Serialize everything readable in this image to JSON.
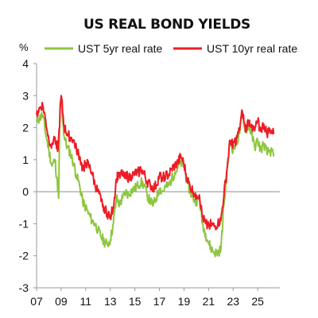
{
  "chart_data": {
    "type": "line",
    "title": "US REAL BOND YIELDS",
    "ylabel": "%",
    "xlabel": "",
    "ylim": [
      -3,
      4
    ],
    "xlim": [
      2007,
      2026.8
    ],
    "y_ticks": [
      4,
      3,
      2,
      1,
      0,
      -1,
      -2,
      -3
    ],
    "x_ticks": [
      "07",
      "09",
      "11",
      "13",
      "15",
      "17",
      "19",
      "21",
      "23",
      "25"
    ],
    "x_tick_values": [
      2007,
      2009,
      2011,
      2013,
      2015,
      2017,
      2019,
      2021,
      2023,
      2025
    ],
    "legend_position": "top",
    "zero_line": true,
    "series": [
      {
        "name": "UST 5yr real rate",
        "color": "#8dc63f",
        "x": [
          2007.0,
          2007.25,
          2007.5,
          2007.75,
          2008.0,
          2008.25,
          2008.5,
          2008.7,
          2008.8,
          2008.9,
          2009.0,
          2009.25,
          2009.5,
          2009.75,
          2010.0,
          2010.25,
          2010.5,
          2010.75,
          2011.0,
          2011.25,
          2011.5,
          2011.75,
          2012.0,
          2012.25,
          2012.5,
          2012.75,
          2013.0,
          2013.25,
          2013.5,
          2013.75,
          2014.0,
          2014.25,
          2014.5,
          2014.75,
          2015.0,
          2015.25,
          2015.5,
          2015.75,
          2016.0,
          2016.25,
          2016.5,
          2016.75,
          2017.0,
          2017.25,
          2017.5,
          2017.75,
          2018.0,
          2018.25,
          2018.5,
          2018.75,
          2019.0,
          2019.25,
          2019.5,
          2019.75,
          2020.0,
          2020.25,
          2020.5,
          2020.75,
          2021.0,
          2021.25,
          2021.5,
          2021.75,
          2022.0,
          2022.25,
          2022.5,
          2022.75,
          2023.0,
          2023.25,
          2023.5,
          2023.75,
          2024.0,
          2024.25,
          2024.5,
          2024.75,
          2025.0,
          2025.25,
          2025.5,
          2025.75,
          2026.0,
          2026.3
        ],
        "values": [
          2.2,
          2.3,
          2.4,
          1.8,
          1.3,
          0.8,
          1.0,
          0.2,
          -0.2,
          2.6,
          2.9,
          1.7,
          1.4,
          1.2,
          0.9,
          0.5,
          0.2,
          -0.3,
          -0.5,
          -0.7,
          -0.9,
          -1.0,
          -1.2,
          -1.4,
          -1.55,
          -1.65,
          -1.5,
          -1.0,
          -0.2,
          -0.4,
          -0.2,
          0.0,
          -0.1,
          0.05,
          0.1,
          0.2,
          0.3,
          0.2,
          -0.1,
          -0.3,
          -0.4,
          -0.2,
          0.1,
          0.0,
          0.15,
          0.2,
          0.4,
          0.6,
          0.75,
          0.9,
          0.8,
          0.3,
          0.0,
          -0.2,
          -0.3,
          -0.2,
          -1.0,
          -1.3,
          -1.6,
          -1.8,
          -1.9,
          -1.9,
          -1.8,
          -0.4,
          0.6,
          1.6,
          1.3,
          1.5,
          1.8,
          2.45,
          1.9,
          2.1,
          1.8,
          1.4,
          1.6,
          1.3,
          1.5,
          1.2,
          1.3,
          1.1
        ]
      },
      {
        "name": "UST 10yr real rate",
        "color": "#ee1c25",
        "x": [
          2007.0,
          2007.25,
          2007.5,
          2007.75,
          2008.0,
          2008.25,
          2008.5,
          2008.75,
          2009.0,
          2009.25,
          2009.5,
          2009.75,
          2010.0,
          2010.25,
          2010.5,
          2010.75,
          2011.0,
          2011.25,
          2011.5,
          2011.75,
          2012.0,
          2012.25,
          2012.5,
          2012.75,
          2013.0,
          2013.25,
          2013.5,
          2013.75,
          2014.0,
          2014.25,
          2014.5,
          2014.75,
          2015.0,
          2015.25,
          2015.5,
          2015.75,
          2016.0,
          2016.25,
          2016.5,
          2016.75,
          2017.0,
          2017.25,
          2017.5,
          2017.75,
          2018.0,
          2018.25,
          2018.5,
          2018.75,
          2019.0,
          2019.25,
          2019.5,
          2019.75,
          2020.0,
          2020.25,
          2020.5,
          2020.75,
          2021.0,
          2021.25,
          2021.5,
          2021.75,
          2022.0,
          2022.25,
          2022.5,
          2022.75,
          2023.0,
          2023.25,
          2023.5,
          2023.75,
          2024.0,
          2024.25,
          2024.5,
          2024.75,
          2025.0,
          2025.25,
          2025.5,
          2025.75,
          2026.0,
          2026.3
        ],
        "values": [
          2.4,
          2.6,
          2.7,
          2.2,
          1.6,
          1.5,
          1.7,
          1.3,
          3.0,
          2.0,
          1.8,
          1.7,
          1.6,
          1.3,
          1.1,
          0.7,
          0.9,
          0.8,
          0.6,
          0.2,
          0.0,
          -0.3,
          -0.5,
          -0.7,
          -0.75,
          -0.5,
          0.4,
          0.6,
          0.5,
          0.6,
          0.4,
          0.5,
          0.55,
          0.6,
          0.7,
          0.55,
          0.3,
          0.2,
          0.1,
          0.2,
          0.5,
          0.45,
          0.5,
          0.5,
          0.7,
          0.8,
          0.9,
          1.1,
          0.85,
          0.4,
          0.15,
          0.0,
          -0.1,
          -0.1,
          -0.8,
          -1.0,
          -1.0,
          -1.05,
          -1.1,
          -1.0,
          -0.9,
          -0.1,
          0.7,
          1.6,
          1.5,
          1.6,
          1.9,
          2.5,
          1.9,
          2.2,
          2.1,
          1.9,
          2.2,
          1.9,
          2.1,
          1.8,
          1.95,
          1.8
        ]
      }
    ]
  }
}
